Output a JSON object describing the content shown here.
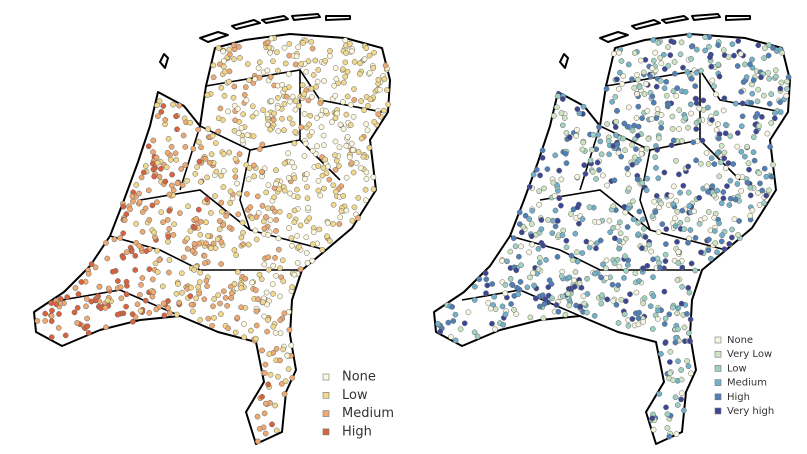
{
  "maps": [
    {
      "legend": [
        {
          "label": "None",
          "color": "#fdf8dc"
        },
        {
          "label": "Low",
          "color": "#f0d98e"
        },
        {
          "label": "Medium",
          "color": "#eeaa72"
        },
        {
          "label": "High",
          "color": "#d8643f"
        }
      ]
    },
    {
      "legend": [
        {
          "label": "None",
          "color": "#f7f6e0"
        },
        {
          "label": "Very Low",
          "color": "#cfe4c2"
        },
        {
          "label": "Low",
          "color": "#9fd0c4"
        },
        {
          "label": "Medium",
          "color": "#72b1c9"
        },
        {
          "label": "High",
          "color": "#4f7fb8"
        },
        {
          "label": "Very high",
          "color": "#3c4796"
        }
      ]
    }
  ]
}
